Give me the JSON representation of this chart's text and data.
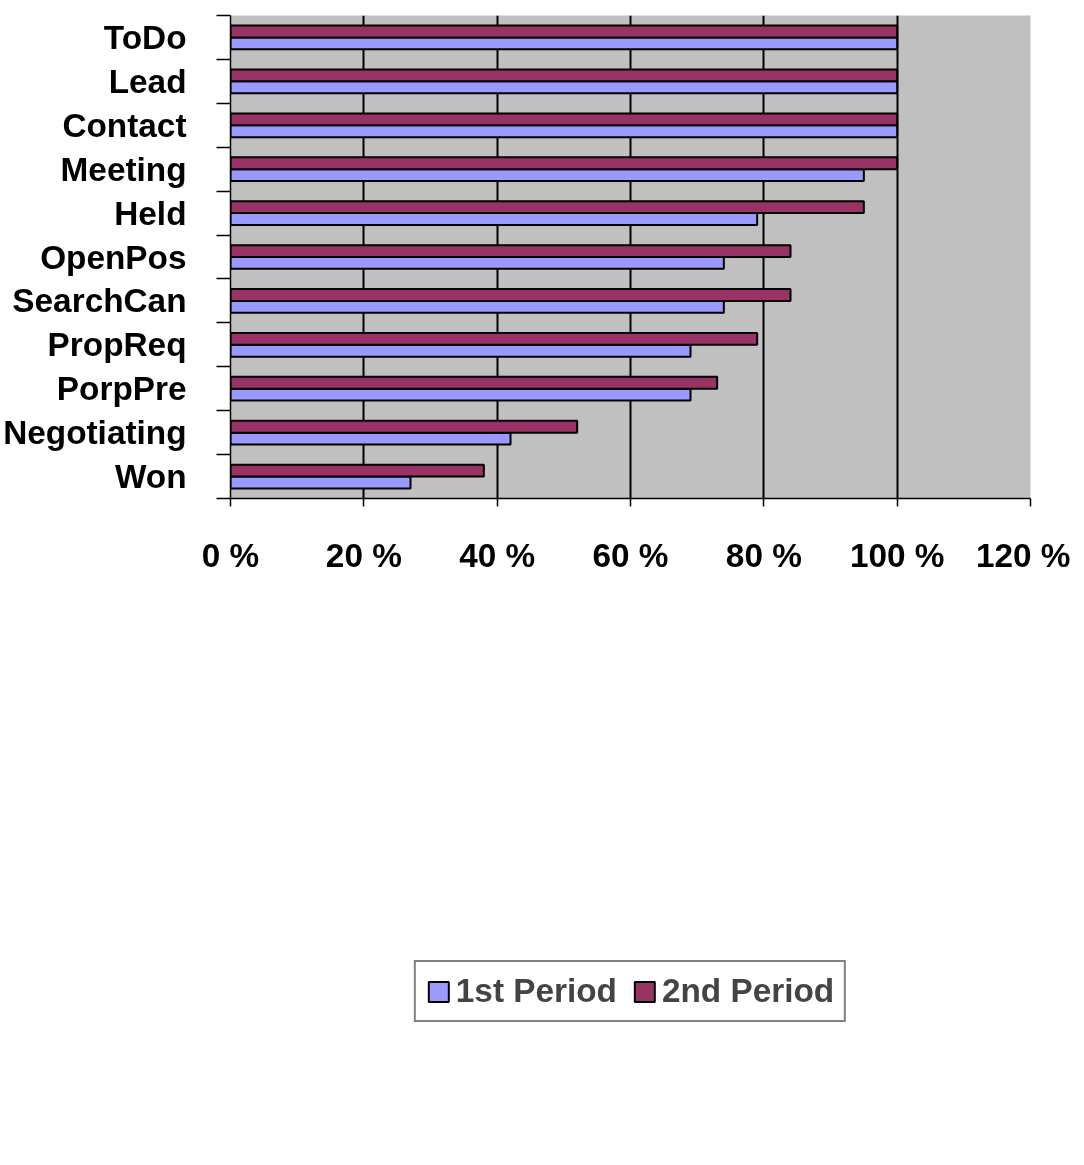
{
  "chart_data": {
    "type": "bar",
    "orientation": "horizontal",
    "categories": [
      "ToDo",
      "Lead",
      "Contact",
      "Meeting",
      "Held",
      "OpenPos",
      "SearchCan",
      "PropReq",
      "PorpPre",
      "Negotiating",
      "Won"
    ],
    "series": [
      {
        "name": "1st Period",
        "color": "#9999ff",
        "values": [
          100,
          100,
          100,
          95,
          79,
          74,
          74,
          69,
          69,
          42,
          27
        ]
      },
      {
        "name": "2nd Period",
        "color": "#993366",
        "values": [
          100,
          100,
          100,
          100,
          95,
          84,
          84,
          79,
          73,
          52,
          38
        ]
      }
    ],
    "xlim": [
      0,
      120
    ],
    "xticks": [
      {
        "value": 0,
        "label": "0 %"
      },
      {
        "value": 20,
        "label": "20 %"
      },
      {
        "value": 40,
        "label": "40 %"
      },
      {
        "value": 60,
        "label": "60 %"
      },
      {
        "value": 80,
        "label": "80 %"
      },
      {
        "value": 100,
        "label": "100 %"
      },
      {
        "value": 120,
        "label": "120 %"
      }
    ],
    "grid": "x",
    "legend": "bottom"
  }
}
